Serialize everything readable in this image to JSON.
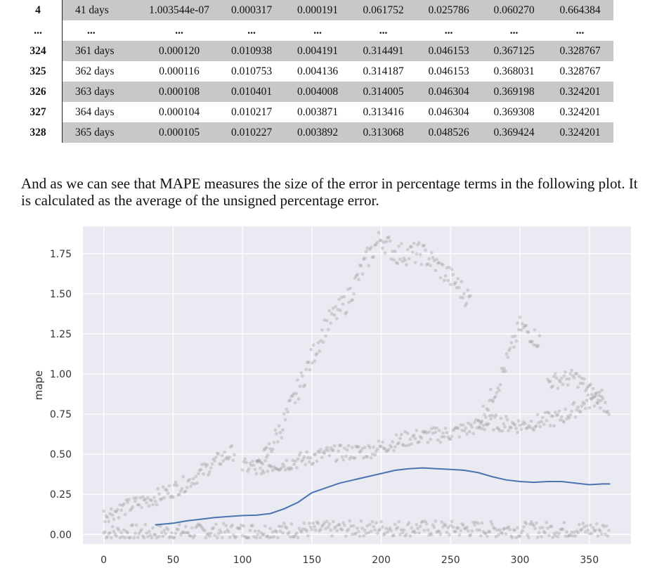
{
  "table": {
    "rows": [
      {
        "index": "4",
        "cells": [
          "41 days",
          "1.003544e-07",
          "0.000317",
          "0.000191",
          "0.061752",
          "0.025786",
          "0.060270",
          "0.664384"
        ],
        "shade": true
      },
      {
        "index": "...",
        "cells": [
          "...",
          "...",
          "...",
          "...",
          "...",
          "...",
          "...",
          "..."
        ],
        "shade": false
      },
      {
        "index": "324",
        "cells": [
          "361 days",
          "0.000120",
          "0.010938",
          "0.004191",
          "0.314491",
          "0.046153",
          "0.367125",
          "0.328767"
        ],
        "shade": true
      },
      {
        "index": "325",
        "cells": [
          "362 days",
          "0.000116",
          "0.010753",
          "0.004136",
          "0.314187",
          "0.046153",
          "0.368031",
          "0.328767"
        ],
        "shade": false
      },
      {
        "index": "326",
        "cells": [
          "363 days",
          "0.000108",
          "0.010401",
          "0.004008",
          "0.314005",
          "0.046304",
          "0.369198",
          "0.324201"
        ],
        "shade": true
      },
      {
        "index": "327",
        "cells": [
          "364 days",
          "0.000104",
          "0.010217",
          "0.003871",
          "0.313416",
          "0.046304",
          "0.369308",
          "0.324201"
        ],
        "shade": false
      },
      {
        "index": "328",
        "cells": [
          "365 days",
          "0.000105",
          "0.010227",
          "0.003892",
          "0.313068",
          "0.048526",
          "0.369424",
          "0.324201"
        ],
        "shade": true
      }
    ]
  },
  "paragraph": "And as we can see that MAPE measures the size of the error in percentage terms in the following plot. It is calculated as the average of the unsigned percentage error.",
  "chart_data": {
    "type": "scatter",
    "ylabel": "mape",
    "xlabel": "",
    "xlim": [
      -15,
      380
    ],
    "ylim": [
      -0.06,
      1.92
    ],
    "xticks": [
      0,
      50,
      100,
      150,
      200,
      250,
      300,
      350
    ],
    "yticks": [
      "0.00",
      "0.25",
      "0.50",
      "0.75",
      "1.00",
      "1.25",
      "1.50",
      "1.75"
    ],
    "ytick_values": [
      0,
      0.25,
      0.5,
      0.75,
      1.0,
      1.25,
      1.5,
      1.75
    ],
    "grid": true,
    "background": "#eaeaf2",
    "series": [
      {
        "type": "line",
        "color": "#4c72b0",
        "x": [
          37,
          50,
          60,
          70,
          80,
          90,
          100,
          110,
          120,
          130,
          140,
          150,
          160,
          170,
          180,
          190,
          200,
          210,
          220,
          230,
          240,
          250,
          260,
          270,
          280,
          290,
          300,
          310,
          320,
          330,
          340,
          350,
          360,
          365
        ],
        "y": [
          0.06,
          0.07,
          0.085,
          0.095,
          0.105,
          0.112,
          0.118,
          0.12,
          0.13,
          0.16,
          0.2,
          0.26,
          0.29,
          0.32,
          0.34,
          0.36,
          0.38,
          0.4,
          0.41,
          0.415,
          0.41,
          0.405,
          0.4,
          0.385,
          0.36,
          0.34,
          0.33,
          0.325,
          0.33,
          0.33,
          0.32,
          0.31,
          0.315,
          0.315
        ]
      },
      {
        "type": "scatter",
        "color": "#999999",
        "clusters": [
          {
            "x": [
              0,
              50,
              100,
              150,
              200,
              250,
              300,
              350,
              365
            ],
            "y": [
              0.01,
              0.015,
              0.02,
              0.03,
              0.04,
              0.035,
              0.03,
              0.03,
              0.03
            ],
            "spread": 0.05
          },
          {
            "x": [
              0,
              20,
              40,
              60,
              80,
              95
            ],
            "y": [
              0.12,
              0.18,
              0.24,
              0.32,
              0.45,
              0.52
            ],
            "spread": 0.05
          },
          {
            "x": [
              100,
              130,
              160,
              190,
              220,
              250,
              280,
              300,
              330,
              360
            ],
            "y": [
              0.42,
              0.44,
              0.5,
              0.52,
              0.6,
              0.63,
              0.7,
              0.68,
              0.73,
              0.88
            ],
            "spread": 0.05
          },
          {
            "x": [
              110,
              130,
              145,
              160,
              175,
              190,
              200,
              210,
              230,
              250,
              265
            ],
            "y": [
              0.38,
              0.7,
              1.0,
              1.3,
              1.45,
              1.72,
              1.85,
              1.75,
              1.75,
              1.6,
              1.45
            ],
            "spread": 0.07
          },
          {
            "x": [
              270,
              285,
              300,
              315
            ],
            "y": [
              0.7,
              0.95,
              1.3,
              1.2
            ],
            "spread": 0.06
          },
          {
            "x": [
              320,
              340,
              350,
              365
            ],
            "y": [
              0.95,
              0.98,
              0.9,
              0.78
            ],
            "spread": 0.05
          }
        ]
      }
    ]
  }
}
